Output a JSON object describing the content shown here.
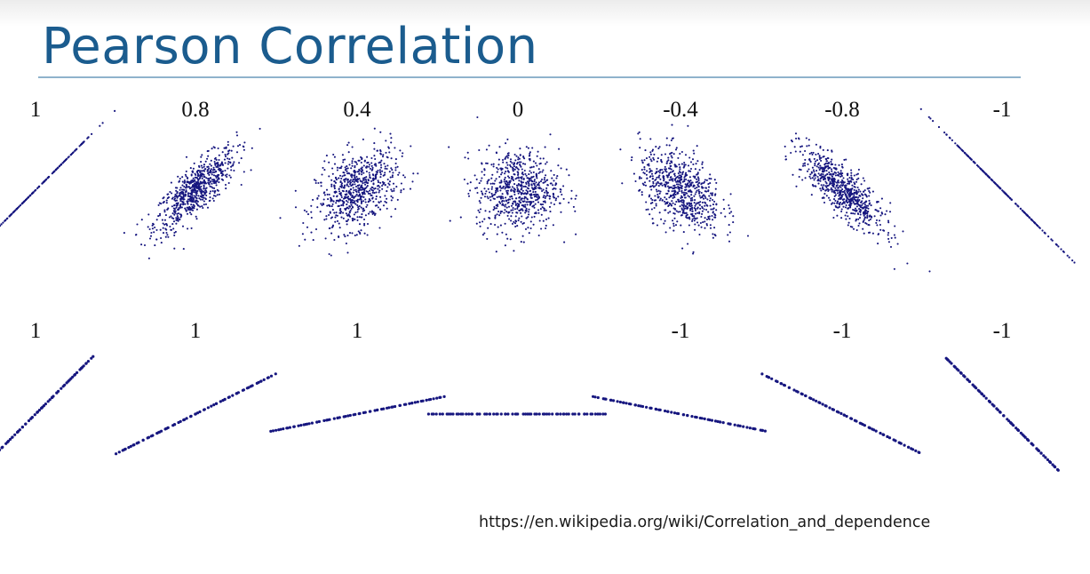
{
  "title": "Pearson Correlation",
  "source_url": "https://en.wikipedia.org/wiki/Correlation_and_dependence",
  "colors": {
    "title": "#1b5c8e",
    "rule": "#8fb2cc",
    "points": "#16167f"
  },
  "chart_data": {
    "type": "scatter",
    "rows": [
      {
        "panels": [
          {
            "label": "1",
            "r": 1
          },
          {
            "label": "0.8",
            "r": 0.8
          },
          {
            "label": "0.4",
            "r": 0.4
          },
          {
            "label": "0",
            "r": 0
          },
          {
            "label": "-0.4",
            "r": -0.4
          },
          {
            "label": "-0.8",
            "r": -0.8
          },
          {
            "label": "-1",
            "r": -1
          }
        ]
      },
      {
        "panels": [
          {
            "label": "1",
            "r": 1,
            "slope": 1
          },
          {
            "label": "1",
            "r": 1,
            "slope": 0.5
          },
          {
            "label": "1",
            "r": 1,
            "slope": 0.2
          },
          {
            "label": "",
            "r": null,
            "slope": 0
          },
          {
            "label": "-1",
            "r": -1,
            "slope": -0.2
          },
          {
            "label": "-1",
            "r": -1,
            "slope": -0.5
          },
          {
            "label": "-1",
            "r": -1,
            "slope": -1
          }
        ]
      }
    ]
  }
}
